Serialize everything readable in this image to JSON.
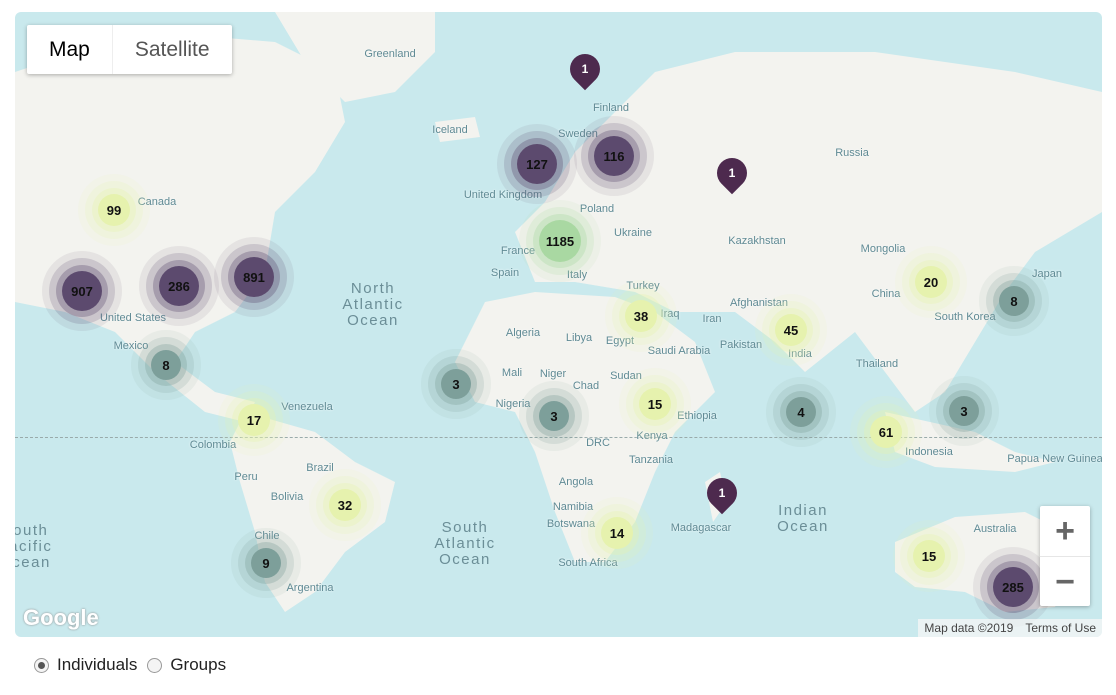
{
  "map_type": {
    "map_label": "Map",
    "satellite_label": "Satellite",
    "selected": "Map"
  },
  "labels": [
    "Greenland",
    "Iceland",
    "Finland",
    "Sweden",
    "Russia",
    "Canada",
    "United Kingdom",
    "Poland",
    "Ukraine",
    "Kazakhstan",
    "Mongolia",
    "France",
    "Spain",
    "Italy",
    "Turkey",
    "China",
    "South Korea",
    "Japan",
    "Afghanistan",
    "Iraq",
    "Iran",
    "Pakistan",
    "India",
    "Algeria",
    "Libya",
    "Egypt",
    "Saudi Arabia",
    "Thailand",
    "Mexico",
    "Mali",
    "Niger",
    "Chad",
    "Sudan",
    "Nigeria",
    "Ethiopia",
    "Venezuela",
    "Colombia",
    "DRC",
    "Kenya",
    "Tanzania",
    "Indonesia",
    "Papua New Guinea",
    "Brazil",
    "Peru",
    "Bolivia",
    "Angola",
    "Namibia",
    "Botswana",
    "Madagascar",
    "Chile",
    "South Africa",
    "Argentina",
    "Australia",
    "United States"
  ],
  "oceans": [
    "North Atlantic Ocean",
    "South Atlantic Ocean",
    "Indian Ocean",
    "South Pacific Ocean"
  ],
  "clusters": [
    {
      "count": "99",
      "level": "medium"
    },
    {
      "count": "907",
      "level": "high"
    },
    {
      "count": "286",
      "level": "high"
    },
    {
      "count": "891",
      "level": "high"
    },
    {
      "count": "8",
      "level": "low"
    },
    {
      "count": "17",
      "level": "medium"
    },
    {
      "count": "32",
      "level": "medium"
    },
    {
      "count": "9",
      "level": "low"
    },
    {
      "count": "3",
      "level": "low"
    },
    {
      "count": "3",
      "level": "low"
    },
    {
      "count": "127",
      "level": "high"
    },
    {
      "count": "116",
      "level": "high"
    },
    {
      "count": "1185",
      "level": "top"
    },
    {
      "count": "38",
      "level": "medium"
    },
    {
      "count": "15",
      "level": "medium"
    },
    {
      "count": "14",
      "level": "medium"
    },
    {
      "count": "45",
      "level": "medium"
    },
    {
      "count": "20",
      "level": "medium"
    },
    {
      "count": "8",
      "level": "low"
    },
    {
      "count": "4",
      "level": "low"
    },
    {
      "count": "61",
      "level": "medium"
    },
    {
      "count": "3",
      "level": "low"
    },
    {
      "count": "15",
      "level": "medium"
    },
    {
      "count": "285",
      "level": "high"
    }
  ],
  "pins": [
    "1",
    "1",
    "1"
  ],
  "colors": {
    "high": "#5c4a6e",
    "low": "#7d9f9a",
    "medium": "#e6f2ae",
    "top": "#a9d8a2",
    "pin": "#4d2a4e",
    "water": "#c9e9ed",
    "land": "#f3f3ef"
  },
  "zoom": {
    "in": "+",
    "out": "−"
  },
  "attribution": {
    "data": "Map data ©2019",
    "terms": "Terms of Use"
  },
  "logo": "Google",
  "view_options": [
    {
      "label": "Individuals",
      "checked": true
    },
    {
      "label": "Groups",
      "checked": false
    }
  ]
}
